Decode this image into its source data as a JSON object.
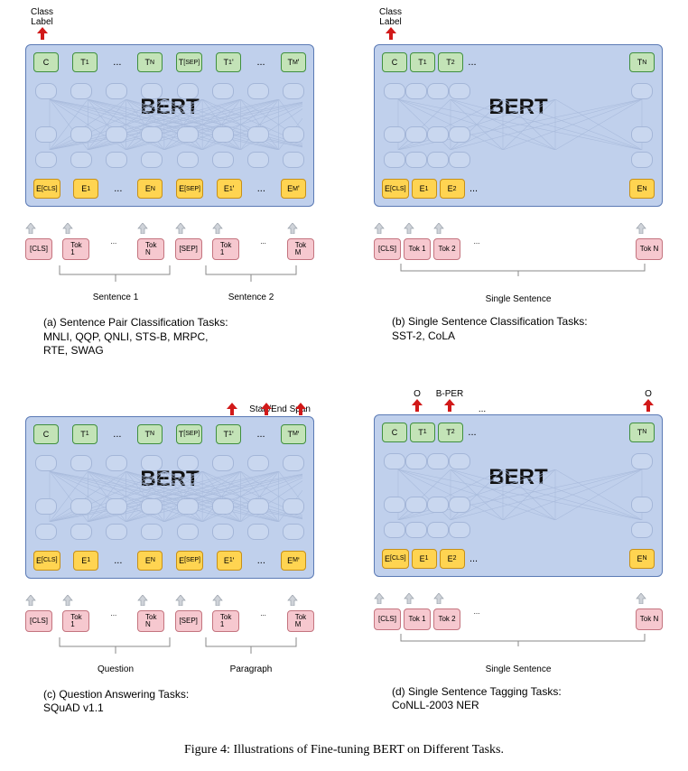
{
  "colors": {
    "bert_bg": "#c0d0ec",
    "bert_border": "#5b7ab5",
    "green_bg": "#c3e3b7",
    "green_border": "#3f8f3f",
    "yellow_bg": "#ffd451",
    "yellow_border": "#c79018",
    "pink_bg": "#f6c8cf",
    "pink_border": "#c4747f",
    "arrow_red": "#d11919",
    "arrow_grey": "#b6bcc4"
  },
  "bert_label": "BERT",
  "ellipsis": "...",
  "panels": {
    "a": {
      "out_label": "Class\nLabel",
      "top": [
        "C",
        "T<sub>1</sub>",
        "...",
        "T<sub>N</sub>",
        "T<sub>[SEP]</sub>",
        "T<sub>1</sub>'",
        "...",
        "T<sub>M</sub>'"
      ],
      "bot": [
        "E<sub>[CLS]</sub>",
        "E<sub>1</sub>",
        "...",
        "E<sub>N</sub>",
        "E<sub>[SEP]</sub>",
        "E<sub>1</sub>'",
        "...",
        "E<sub>M</sub>'"
      ],
      "inp": [
        "[CLS]",
        "Tok\n1",
        "...",
        "Tok\nN",
        "[SEP]",
        "Tok\n1",
        "...",
        "Tok\nM"
      ],
      "brace1": "Sentence 1",
      "brace2": "Sentence 2",
      "caption": "(a) Sentence Pair Classification Tasks:\nMNLI, QQP, QNLI, STS-B, MRPC,\nRTE, SWAG"
    },
    "b": {
      "out_label": "Class\nLabel",
      "top": [
        "C",
        "T<sub>1</sub>",
        "T<sub>2</sub>",
        "...",
        "T<sub>N</sub>"
      ],
      "bot": [
        "E<sub>[CLS]</sub>",
        "E<sub>1</sub>",
        "E<sub>2</sub>",
        "...",
        "E<sub>N</sub>"
      ],
      "inp": [
        "[CLS]",
        "Tok 1",
        "Tok 2",
        "...",
        "Tok N"
      ],
      "single": "Single Sentence",
      "caption": "(b) Single Sentence Classification Tasks:\nSST-2, CoLA"
    },
    "c": {
      "out_label_right": "Start/End Span",
      "top": [
        "C",
        "T<sub>1</sub>",
        "...",
        "T<sub>N</sub>",
        "T<sub>[SEP]</sub>",
        "T<sub>1</sub>'",
        "...",
        "T<sub>M</sub>'"
      ],
      "bot": [
        "E<sub>[CLS]</sub>",
        "E<sub>1</sub>",
        "...",
        "E<sub>N</sub>",
        "E<sub>[SEP]</sub>",
        "E<sub>1</sub>'",
        "...",
        "E<sub>M</sub>'"
      ],
      "inp": [
        "[CLS]",
        "Tok\n1",
        "...",
        "Tok\nN",
        "[SEP]",
        "Tok\n1",
        "...",
        "Tok\nM"
      ],
      "brace1": "Question",
      "brace2": "Paragraph",
      "caption": "(c) Question Answering Tasks:\nSQuAD v1.1"
    },
    "d": {
      "out_labels": [
        "",
        "O",
        "B-PER",
        "...",
        "O"
      ],
      "top": [
        "C",
        "T<sub>1</sub>",
        "T<sub>2</sub>",
        "...",
        "T<sub>N</sub>"
      ],
      "bot": [
        "E<sub>[CLS]</sub>",
        "E<sub>1</sub>",
        "E<sub>2</sub>",
        "...",
        "E<sub>N</sub>"
      ],
      "inp": [
        "[CLS]",
        "Tok 1",
        "Tok 2",
        "...",
        "Tok N"
      ],
      "single": "Single Sentence",
      "caption": "(d) Single Sentence Tagging Tasks:\nCoNLL-2003 NER"
    }
  },
  "figure_caption": "Figure 4: Illustrations of Fine-tuning BERT on Different Tasks."
}
